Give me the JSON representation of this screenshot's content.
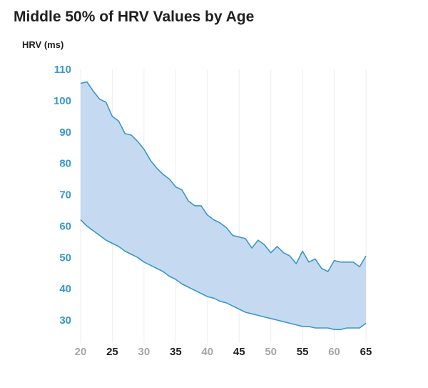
{
  "chart_data": {
    "type": "area",
    "title": "Middle 50% of HRV Values by Age",
    "ylabel": "HRV (ms)",
    "xlabel": "",
    "xlim": [
      20,
      65
    ],
    "ylim": [
      25,
      110
    ],
    "yticks": [
      30,
      40,
      50,
      60,
      70,
      80,
      90,
      100,
      110
    ],
    "xticks": [
      {
        "label": "20",
        "value": 20,
        "emphasis": false
      },
      {
        "label": "25",
        "value": 25,
        "emphasis": true
      },
      {
        "label": "30",
        "value": 30,
        "emphasis": false
      },
      {
        "label": "35",
        "value": 35,
        "emphasis": true
      },
      {
        "label": "40",
        "value": 40,
        "emphasis": false
      },
      {
        "label": "45",
        "value": 45,
        "emphasis": true
      },
      {
        "label": "50",
        "value": 50,
        "emphasis": false
      },
      {
        "label": "55",
        "value": 55,
        "emphasis": true
      },
      {
        "label": "60",
        "value": 60,
        "emphasis": false
      },
      {
        "label": "65",
        "value": 65,
        "emphasis": true
      }
    ],
    "grid": {
      "vertical": true,
      "horizontal": false
    },
    "colors": {
      "band_fill": "#c5daf0",
      "band_line": "#3a97c9",
      "y_tick_text": "#3a97c9",
      "x_tick_emphasis": "#1f1f1f",
      "x_tick_muted": "#a6a6a6",
      "grid": "#eeeeee"
    },
    "x": [
      20,
      21,
      22,
      23,
      24,
      25,
      26,
      27,
      28,
      29,
      30,
      31,
      32,
      33,
      34,
      35,
      36,
      37,
      38,
      39,
      40,
      41,
      42,
      43,
      44,
      45,
      46,
      47,
      48,
      49,
      50,
      51,
      52,
      53,
      54,
      55,
      56,
      57,
      58,
      59,
      60,
      61,
      62,
      63,
      64,
      65
    ],
    "series": [
      {
        "role": "upper",
        "values": [
          105.5,
          106,
          103,
          100.5,
          99.5,
          95,
          93.5,
          89.5,
          89,
          87,
          84.5,
          81,
          78.5,
          76.5,
          75,
          72.5,
          71.5,
          68,
          66.5,
          66.5,
          63.5,
          62,
          61,
          59.5,
          57,
          56.5,
          56,
          53,
          55.5,
          54,
          51.5,
          53.5,
          51.5,
          50.5,
          48,
          52,
          48.5,
          49.5,
          46.5,
          45.5,
          49,
          48.5,
          48.5,
          48.5,
          47,
          50.5
        ]
      },
      {
        "role": "lower",
        "values": [
          62,
          60,
          58.5,
          57,
          55.5,
          54.5,
          53.5,
          52,
          51,
          50,
          48.5,
          47.5,
          46.5,
          45.5,
          44,
          43,
          41.5,
          40.5,
          39.5,
          38.5,
          37.5,
          37,
          36,
          35.5,
          34.5,
          33.5,
          32.5,
          32,
          31.5,
          31,
          30.5,
          30,
          29.5,
          29,
          28.5,
          28,
          28,
          27.5,
          27.5,
          27.5,
          27,
          27,
          27.5,
          27.5,
          27.5,
          29
        ]
      }
    ]
  }
}
